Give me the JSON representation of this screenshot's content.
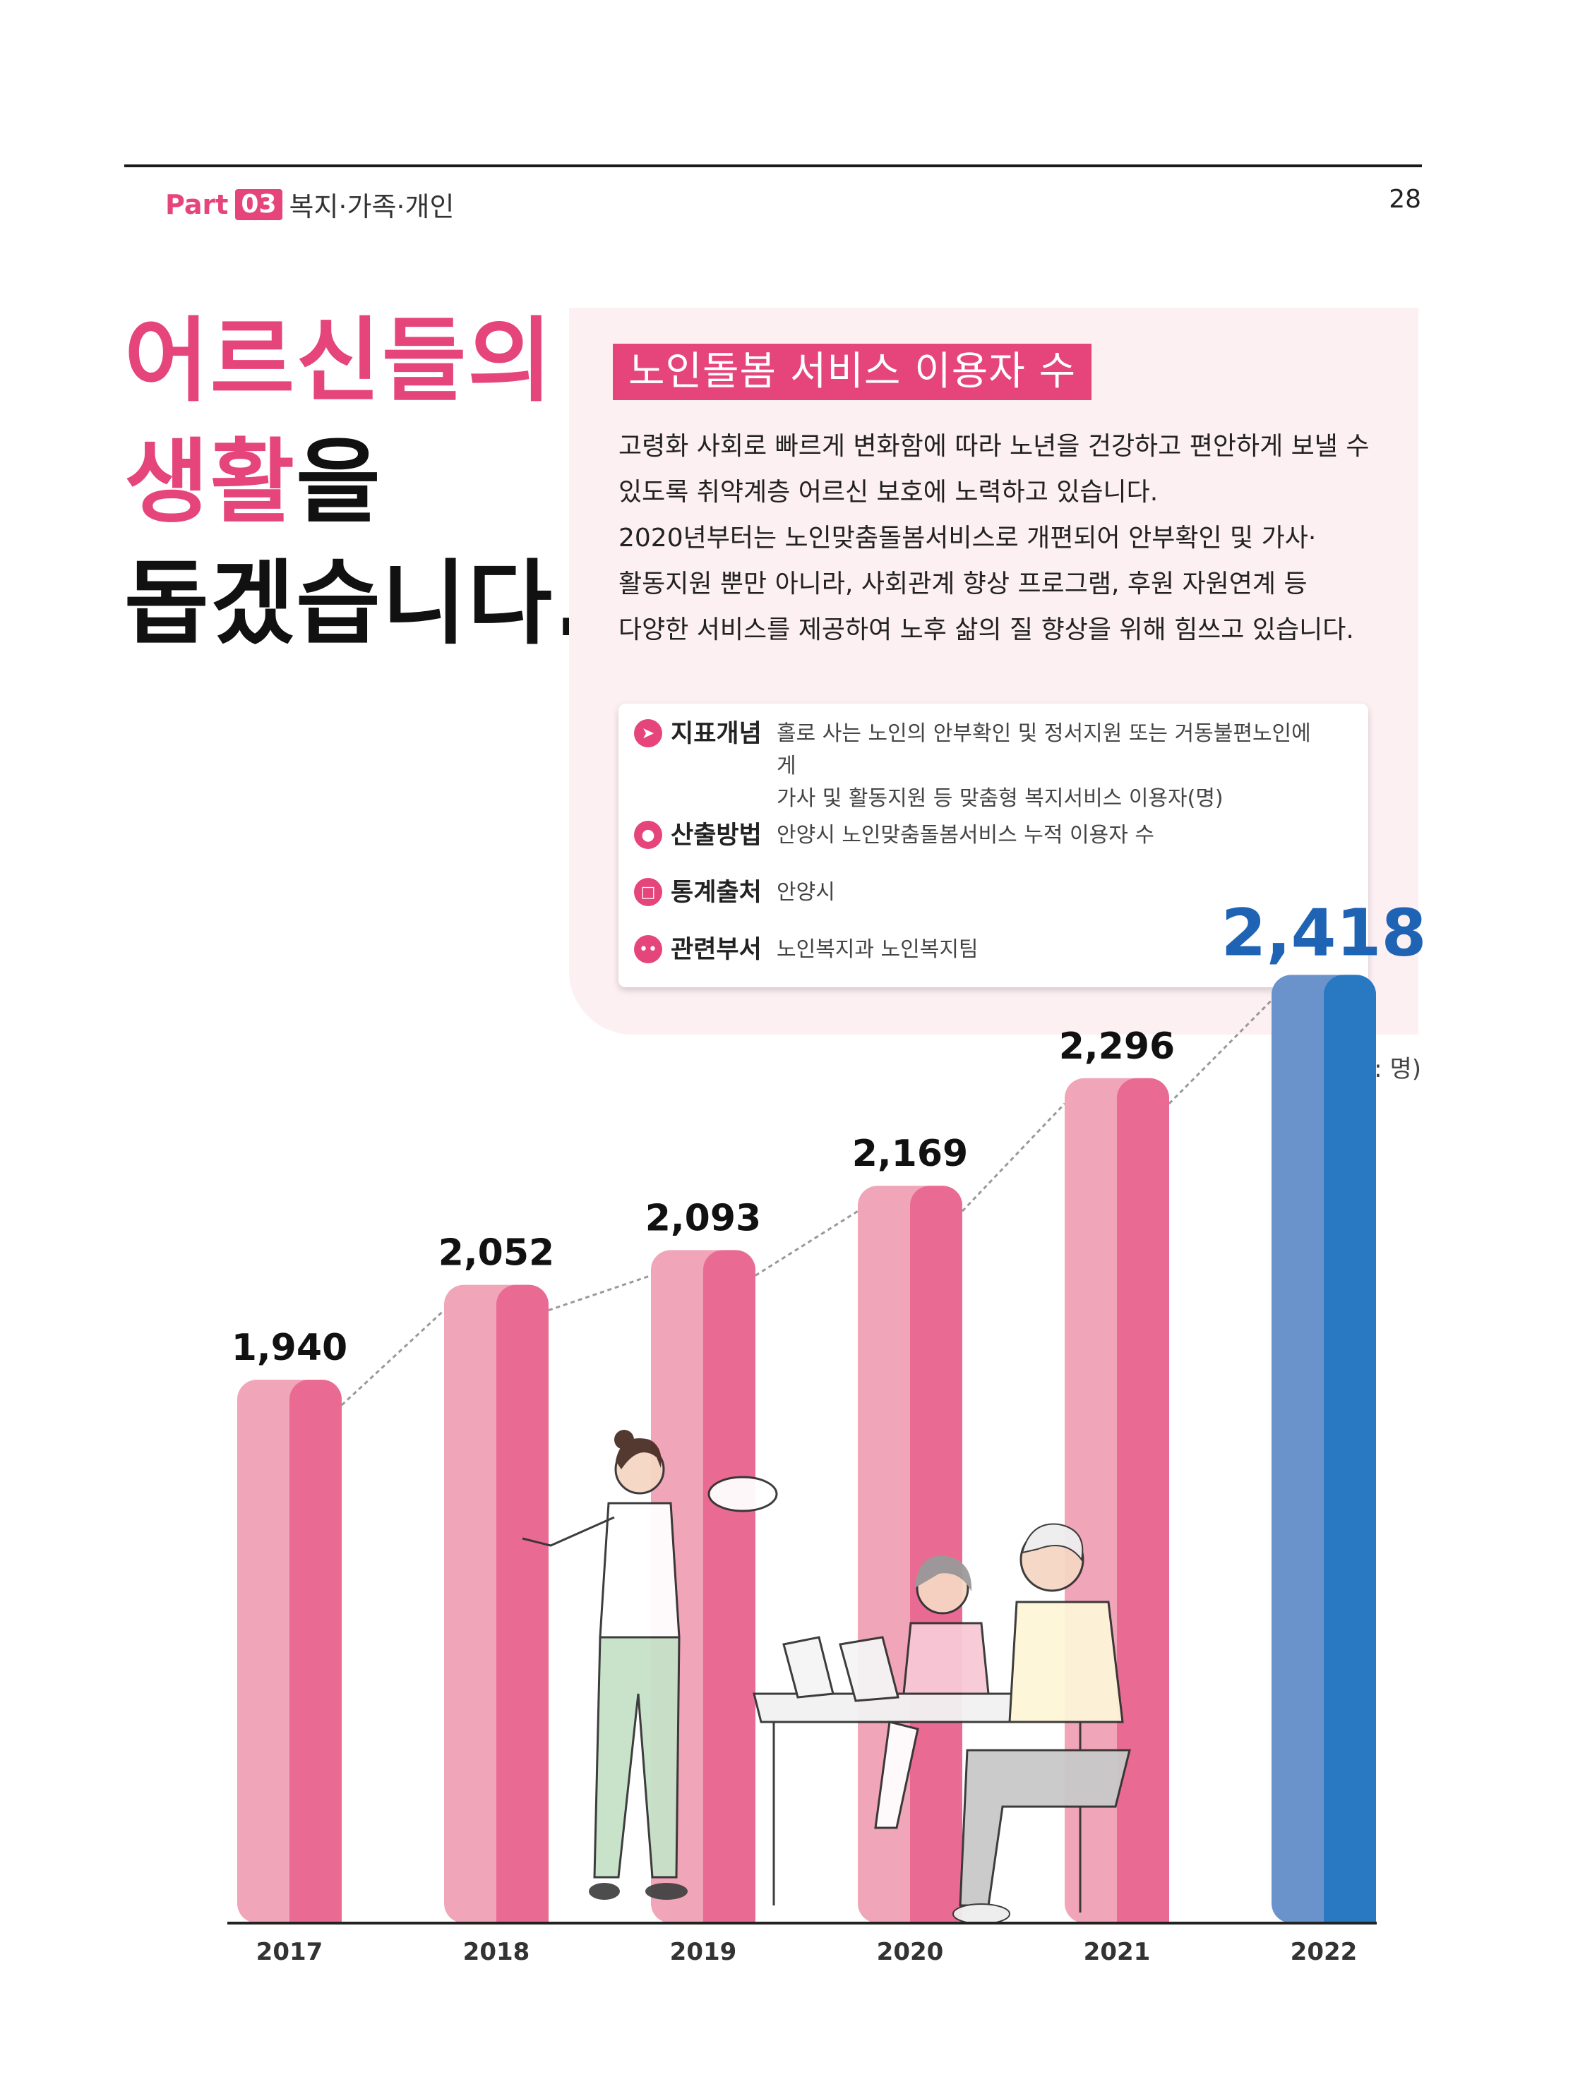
{
  "header": {
    "part_prefix": "Part",
    "part_number": "03",
    "part_title": "복지·가족·개인",
    "page_number": "28"
  },
  "headline": {
    "line1": "어르신들의",
    "line2_highlight": "생활",
    "line2_rest": "을",
    "line3": "돕겠습니다."
  },
  "info": {
    "title": "노인돌봄 서비스 이용자 수",
    "body": [
      "고령화 사회로 빠르게 변화함에 따라 노년을 건강하고 편안하게 보낼 수",
      "있도록 취약계층 어르신 보호에 노력하고 있습니다.",
      "2020년부터는 노인맞춤돌봄서비스로 개편되어 안부확인 및 가사·",
      "활동지원 뿐만 아니라, 사회관계 향상 프로그램, 후원 자원연계 등",
      "다양한 서비스를 제공하여 노후 삶의 질 향상을 위해 힘쓰고 있습니다."
    ],
    "definitions": [
      {
        "label": "지표개념",
        "icon": "paper-plane-icon",
        "value_line1": "홀로 사는 노인의 안부확인 및 정서지원 또는 거동불편노인에게",
        "value_line2": "가사 및 활동지원 등 맞춤형 복지서비스 이용자(명)"
      },
      {
        "label": "산출방법",
        "icon": "chat-bubble-icon",
        "value_line1": "안양시 노인맞춤돌봄서비스 누적 이용자 수",
        "value_line2": ""
      },
      {
        "label": "통계출처",
        "icon": "monitor-icon",
        "value_line1": "안양시",
        "value_line2": ""
      },
      {
        "label": "관련부서",
        "icon": "people-icon",
        "value_line1": "노인복지과 노인복지팀",
        "value_line2": ""
      }
    ]
  },
  "unit_label": "(단위: 명)",
  "colors": {
    "accent": "#e5457a",
    "bar_light": "#f0a5b8",
    "bar_dark": "#e96b93",
    "highlight_light": "#6a93cc",
    "highlight_dark": "#2878c2",
    "highlight_text": "#1e63b4"
  },
  "chart_data": {
    "type": "bar",
    "categories": [
      "2017",
      "2018",
      "2019",
      "2020",
      "2021",
      "2022"
    ],
    "values": [
      1940,
      2052,
      2093,
      2169,
      2296,
      2418
    ],
    "value_labels": [
      "1,940",
      "2,052",
      "2,093",
      "2,169",
      "2,296",
      "2,418"
    ],
    "highlight_index": 5,
    "trend_line": true,
    "title": "",
    "xlabel": "",
    "ylabel": "",
    "grid": false
  }
}
